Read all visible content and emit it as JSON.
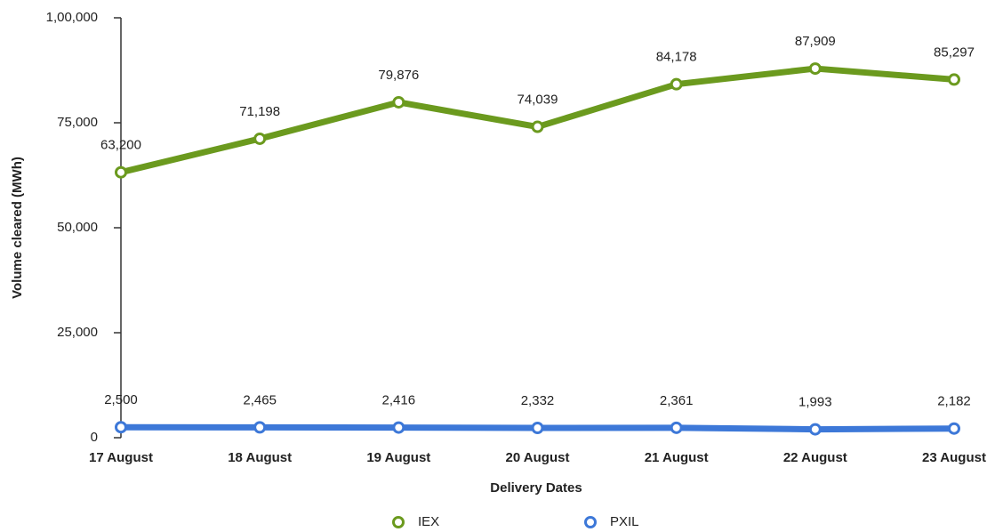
{
  "chart_data": {
    "type": "line",
    "categories": [
      "17 August",
      "18 August",
      "19 August",
      "20 August",
      "21 August",
      "22 August",
      "23 August"
    ],
    "series": [
      {
        "name": "IEX",
        "color": "#6b9a1e",
        "values": [
          63200,
          71198,
          79876,
          74039,
          84178,
          87909,
          85297
        ],
        "value_labels": [
          "63,200",
          "71,198",
          "79,876",
          "74,039",
          "84,178",
          "87,909",
          "85,297"
        ]
      },
      {
        "name": "PXIL",
        "color": "#3d78d8",
        "values": [
          2500,
          2465,
          2416,
          2332,
          2361,
          1993,
          2182
        ],
        "value_labels": [
          "2,500",
          "2,465",
          "2,416",
          "2,332",
          "2,361",
          "1,993",
          "2,182"
        ]
      }
    ],
    "ylim": [
      0,
      100000
    ],
    "yticks": [
      0,
      {
        "value": 25000,
        "label": "25,000"
      },
      {
        "value": 50000,
        "label": "50,000"
      },
      {
        "value": 75000,
        "label": "75,000"
      },
      {
        "value": 100000,
        "label": "1,00,000"
      }
    ],
    "y_label": "Volume cleared (MWh)",
    "x_label": "Delivery Dates",
    "legend": "bottom"
  }
}
